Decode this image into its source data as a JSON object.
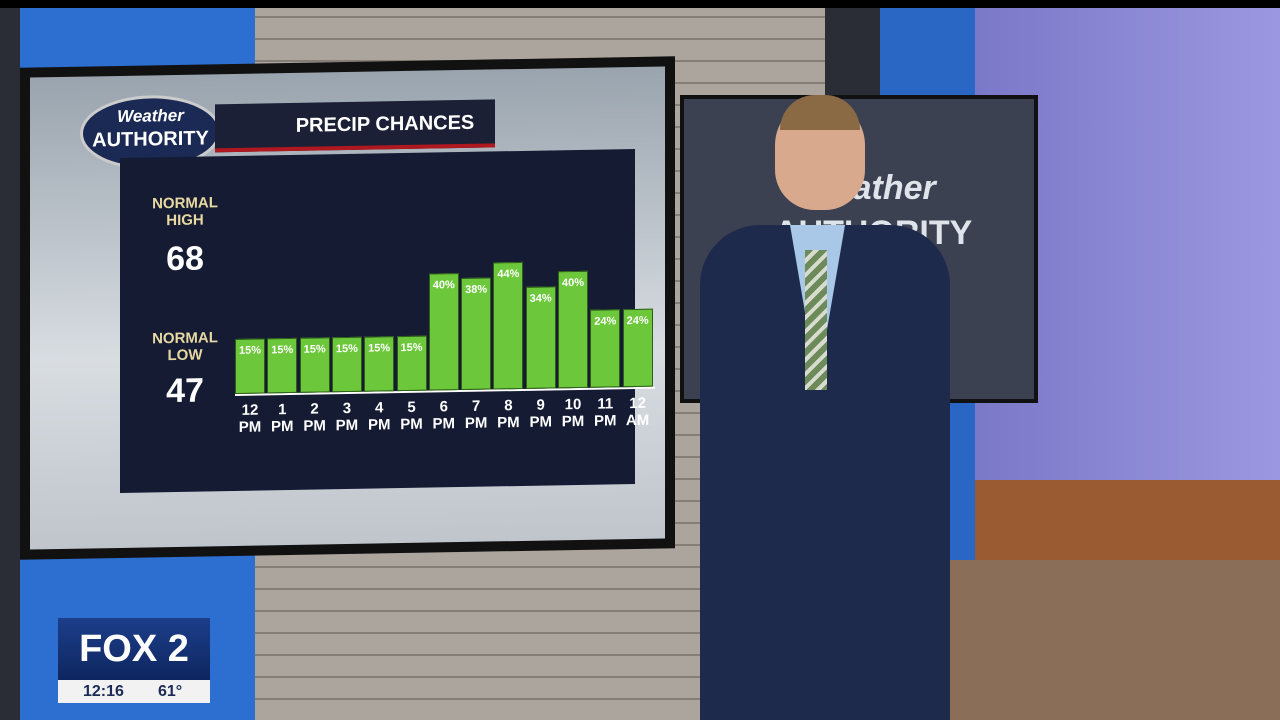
{
  "logo": {
    "line1": "Weather",
    "line2": "AUTHORITY"
  },
  "chart_data": {
    "type": "bar",
    "title": "PRECIP CHANCES",
    "categories": [
      "12 PM",
      "1 PM",
      "2 PM",
      "3 PM",
      "4 PM",
      "5 PM",
      "6 PM",
      "7 PM",
      "8 PM",
      "9 PM",
      "10 PM",
      "11 PM",
      "12 AM"
    ],
    "values": [
      15,
      15,
      15,
      15,
      15,
      15,
      40,
      38,
      44,
      34,
      40,
      24,
      24
    ],
    "value_labels": [
      "15%",
      "15%",
      "15%",
      "15%",
      "15%",
      "15%",
      "40%",
      "38%",
      "44%",
      "34%",
      "40%",
      "24%",
      "24%"
    ],
    "color": "#6cc83a"
  },
  "normals": {
    "high_label": "NORMAL HIGH",
    "high": 68,
    "low_label": "NORMAL LOW",
    "low": 47
  },
  "station": {
    "logo": "FOX 2",
    "time": "12:16",
    "temperature": "61°"
  }
}
